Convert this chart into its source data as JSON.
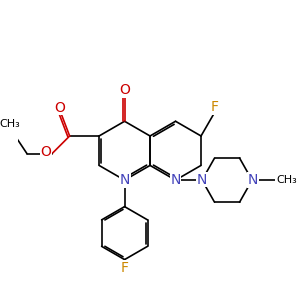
{
  "bg_color": "#ffffff",
  "bond_color": "#000000",
  "bond_width": 1.2,
  "atom_colors": {
    "N": "#4444bb",
    "O": "#cc0000",
    "F": "#cc8800"
  },
  "font_size_atom": 9,
  "font_size_small": 8
}
